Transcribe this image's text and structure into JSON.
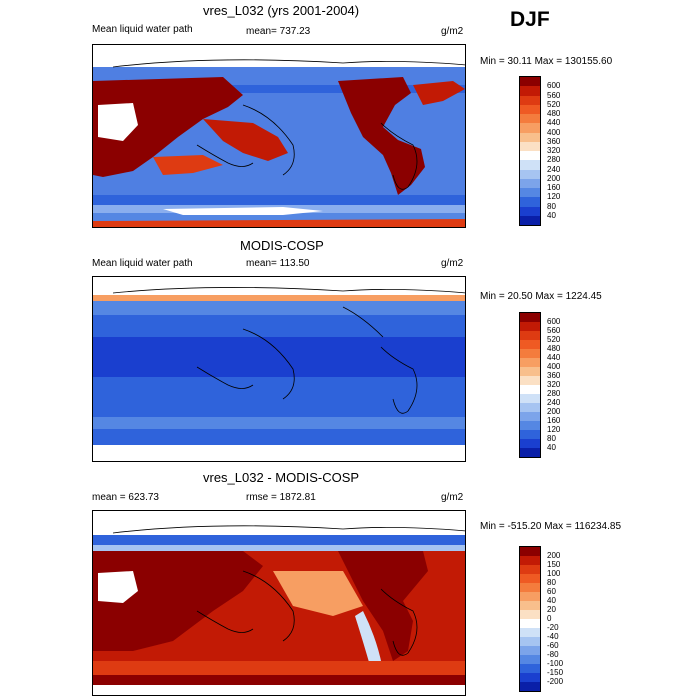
{
  "season": "DJF",
  "panels": [
    {
      "title": "vres_L032 (yrs 2001-2004)",
      "left_label": "Mean liquid water path",
      "center_label": "mean= 737.23",
      "right_label": "g/m2",
      "minmax": "Min =  30.11 Max = 130155.60",
      "colorbar": {
        "labels": [
          "600",
          "560",
          "520",
          "480",
          "440",
          "400",
          "360",
          "320",
          "280",
          "240",
          "200",
          "160",
          "120",
          "80",
          "40"
        ],
        "colors": [
          "#8b0000",
          "#c21a05",
          "#de3b12",
          "#ef5a23",
          "#f47c3d",
          "#f79e62",
          "#f8bf8c",
          "#fbe0c4",
          "#ffffff",
          "#cfe1f7",
          "#a6c4f1",
          "#7ca4ea",
          "#5587e3",
          "#2f63db",
          "#1a3fcf",
          "#0a1fa8"
        ]
      }
    },
    {
      "title": "MODIS-COSP",
      "left_label": "Mean liquid water path",
      "center_label": "mean= 113.50",
      "right_label": "g/m2",
      "minmax": "Min =  20.50 Max = 1224.45",
      "colorbar": {
        "labels": [
          "600",
          "560",
          "520",
          "480",
          "440",
          "400",
          "360",
          "320",
          "280",
          "240",
          "200",
          "160",
          "120",
          "80",
          "40"
        ],
        "colors": [
          "#8b0000",
          "#c21a05",
          "#de3b12",
          "#ef5a23",
          "#f47c3d",
          "#f79e62",
          "#f8bf8c",
          "#fbe0c4",
          "#ffffff",
          "#cfe1f7",
          "#a6c4f1",
          "#7ca4ea",
          "#5587e3",
          "#2f63db",
          "#1a3fcf",
          "#0a1fa8"
        ]
      }
    },
    {
      "title": "vres_L032 - MODIS-COSP",
      "left_label": "mean = 623.73",
      "center_label": "rmse = 1872.81",
      "right_label": "g/m2",
      "minmax": "Min = -515.20 Max = 116234.85",
      "colorbar": {
        "labels": [
          "200",
          "150",
          "100",
          "80",
          "60",
          "40",
          "20",
          "0",
          "-20",
          "-40",
          "-60",
          "-80",
          "-100",
          "-150",
          "-200"
        ],
        "colors": [
          "#8b0000",
          "#c21a05",
          "#de3b12",
          "#ef5a23",
          "#f47c3d",
          "#f79e62",
          "#f8bf8c",
          "#fbe0c4",
          "#ffffff",
          "#cfe1f7",
          "#a6c4f1",
          "#7ca4ea",
          "#5587e3",
          "#2f63db",
          "#1a3fcf",
          "#0a1fa8"
        ]
      }
    }
  ]
}
